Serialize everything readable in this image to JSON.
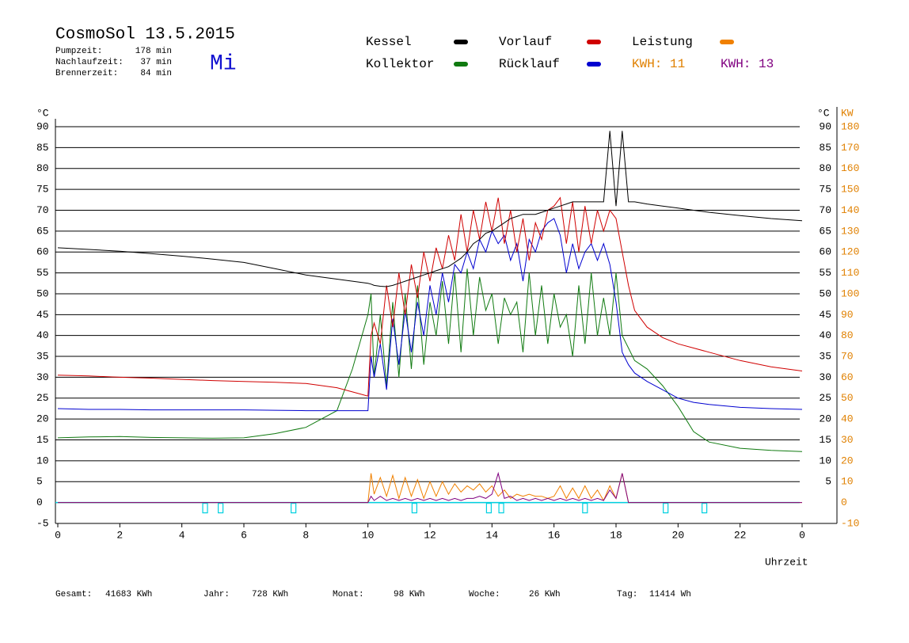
{
  "chart_data": {
    "type": "line",
    "title": "CosmoSol 13.5.2015",
    "day": "Mi",
    "info": [
      {
        "label": "Pumpzeit:",
        "value": "178 min"
      },
      {
        "label": "Nachlaufzeit:",
        "value": "37 min"
      },
      {
        "label": "Brennerzeit:",
        "value": "84 min"
      }
    ],
    "ylabel": "°C",
    "y2label": "KW",
    "xlabel": "Uhrzeit",
    "xlim": [
      0,
      24
    ],
    "xticks": [
      0,
      2,
      4,
      6,
      8,
      10,
      12,
      14,
      16,
      18,
      20,
      22,
      {
        "value": 24,
        "label": "0"
      }
    ],
    "ylim": [
      -5,
      90
    ],
    "yticks": [
      90,
      85,
      80,
      75,
      70,
      65,
      60,
      55,
      50,
      45,
      40,
      35,
      30,
      25,
      20,
      15,
      10,
      5,
      0,
      -5
    ],
    "yticks_right": [
      90,
      85,
      80,
      75,
      70,
      65,
      60,
      55,
      50,
      45,
      40,
      35,
      30,
      25,
      20,
      15,
      10,
      5
    ],
    "y2lim": [
      -10,
      180
    ],
    "y2ticks": [
      180,
      170,
      160,
      150,
      140,
      130,
      120,
      110,
      100,
      90,
      80,
      70,
      60,
      50,
      40,
      30,
      20,
      10,
      0,
      -10
    ],
    "y2color": "#e08000",
    "grid": true,
    "x": [
      0,
      1,
      2,
      3,
      4,
      5,
      6,
      7,
      8,
      9,
      9.5,
      10,
      10.1,
      10.2,
      10.4,
      10.6,
      10.8,
      11,
      11.2,
      11.4,
      11.6,
      11.8,
      12,
      12.2,
      12.4,
      12.6,
      12.8,
      13,
      13.2,
      13.4,
      13.6,
      13.8,
      14,
      14.2,
      14.4,
      14.6,
      14.8,
      15,
      15.2,
      15.4,
      15.6,
      15.8,
      16,
      16.2,
      16.4,
      16.6,
      16.8,
      17,
      17.2,
      17.4,
      17.6,
      17.8,
      18,
      18.2,
      18.4,
      18.6,
      19,
      19.5,
      20,
      20.5,
      21,
      22,
      23,
      24
    ],
    "series": [
      {
        "name": "Kessel",
        "color": "#000000",
        "values": [
          61,
          60.6,
          60.2,
          59.6,
          59,
          58.3,
          57.5,
          56,
          54.5,
          53.5,
          53,
          52.5,
          52.3,
          52,
          51.8,
          51.7,
          52,
          52.5,
          53,
          53.5,
          54,
          54.5,
          55,
          55.5,
          56,
          56.5,
          57.5,
          58.5,
          60,
          62,
          63,
          64.5,
          65,
          66,
          67,
          68,
          68.5,
          69,
          69,
          69,
          69.5,
          70,
          70.5,
          71,
          71.5,
          72,
          72,
          72,
          72,
          72,
          72,
          89,
          71,
          89,
          72,
          72,
          71.5,
          71,
          70.5,
          70,
          69.5,
          68.7,
          68,
          67.5
        ]
      },
      {
        "name": "Kollektor",
        "color": "#107a10",
        "values": [
          15.5,
          15.7,
          15.8,
          15.6,
          15.5,
          15.4,
          15.5,
          16.5,
          18,
          22,
          32,
          45,
          50,
          30,
          45,
          28,
          48,
          30,
          50,
          32,
          52,
          33,
          48,
          40,
          53,
          38,
          55,
          36,
          56,
          40,
          54,
          46,
          50,
          38,
          49,
          45,
          48,
          36,
          55,
          40,
          52,
          38,
          50,
          42,
          45,
          35,
          52,
          38,
          55,
          40,
          49,
          40,
          55,
          40,
          37,
          34,
          32,
          28,
          23,
          17,
          14.5,
          13,
          12.5,
          12.2
        ]
      },
      {
        "name": "Vorlauf",
        "color": "#d00000",
        "values": [
          30.5,
          30.3,
          30,
          29.8,
          29.5,
          29.2,
          29,
          28.8,
          28.5,
          27.5,
          26.5,
          25.5,
          40,
          43,
          38,
          52,
          42,
          55,
          45,
          57,
          49,
          60,
          53,
          61,
          56,
          64,
          58,
          69,
          60,
          70,
          63,
          72,
          65,
          73,
          62,
          70,
          60,
          68,
          58,
          67,
          63,
          70,
          71,
          73,
          62,
          72,
          60,
          71,
          62,
          70,
          65,
          70,
          68,
          60,
          52,
          46,
          42,
          39.5,
          38,
          37,
          36,
          34,
          32.5,
          31.5
        ]
      },
      {
        "name": "Rücklauf",
        "color": "#0000d0",
        "values": [
          22.5,
          22.3,
          22.3,
          22.2,
          22.2,
          22.2,
          22.2,
          22.1,
          22,
          22,
          22,
          22,
          35,
          30,
          38,
          27,
          44,
          33,
          46,
          36,
          48,
          40,
          52,
          45,
          55,
          48,
          57,
          55,
          60,
          56,
          63,
          60,
          65,
          62,
          64,
          58,
          62,
          53,
          63,
          60,
          65,
          67,
          68,
          64,
          55,
          62,
          56,
          60,
          62,
          58,
          62,
          57,
          48,
          36,
          33,
          31,
          29,
          27,
          25,
          24,
          23.5,
          22.8,
          22.5,
          22.3
        ]
      },
      {
        "name": "Leistung",
        "color": "#f08000",
        "axis": "y2",
        "values": [
          0,
          0,
          0,
          0,
          0,
          0,
          0,
          0,
          0,
          0,
          0,
          0,
          14,
          4,
          12,
          3,
          13,
          2,
          12,
          3,
          11,
          2,
          10,
          3,
          10,
          4,
          9,
          5,
          8,
          6,
          9,
          5,
          8,
          3,
          6,
          2,
          4,
          3,
          4,
          3,
          3,
          2,
          3,
          8,
          2,
          7,
          2,
          8,
          2,
          6,
          1,
          8,
          2,
          14,
          0,
          0,
          0,
          0,
          0,
          0,
          0,
          0,
          0,
          0
        ]
      },
      {
        "color": "#800080",
        "axis": "y2",
        "values": [
          0,
          0,
          0,
          0,
          0,
          0,
          0,
          0,
          0,
          0,
          0,
          0,
          3,
          1,
          3,
          1,
          2,
          1,
          2,
          1,
          2,
          1,
          2,
          1,
          2,
          1,
          2,
          1,
          2,
          2,
          3,
          2,
          4,
          14,
          2,
          3,
          1,
          2,
          1,
          2,
          1,
          2,
          1,
          2,
          1,
          2,
          1,
          2,
          1,
          2,
          1,
          6,
          2,
          14,
          0,
          0,
          0,
          0,
          0,
          0,
          0,
          0,
          0,
          0
        ]
      }
    ],
    "kwh_labels": [
      {
        "text": "KWH: 11",
        "color": "#e08000"
      },
      {
        "text": "KWH: 13",
        "color": "#800080"
      }
    ],
    "pump": {
      "color": "#00d0e0",
      "level": 0,
      "x": [
        4.75,
        5.25,
        7.6,
        11.5,
        13.9,
        14.3,
        17,
        19.6,
        20.85
      ]
    },
    "footer": [
      {
        "label": "Gesamt:",
        "value": "41683 KWh"
      },
      {
        "label": "Jahr:",
        "value": "728 KWh"
      },
      {
        "label": "Monat:",
        "value": "98 KWh"
      },
      {
        "label": "Woche:",
        "value": "26 KWh"
      },
      {
        "label": "Tag:",
        "value": "11414 Wh"
      }
    ]
  }
}
